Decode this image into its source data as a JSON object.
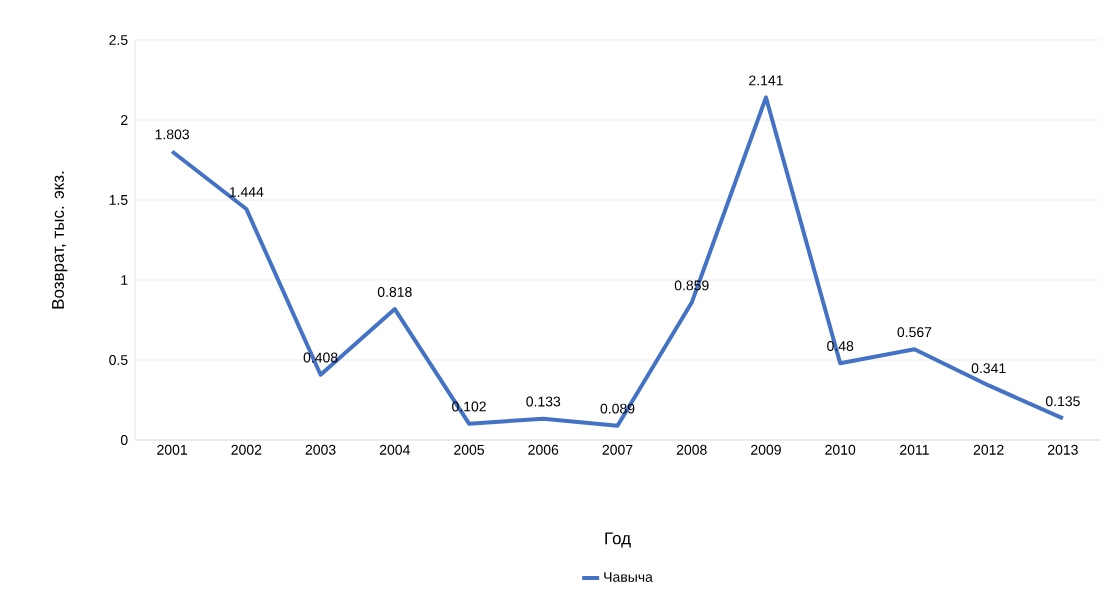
{
  "chart_data": {
    "type": "line",
    "xlabel": "Год",
    "ylabel": "Возврат, тыс. экз.",
    "categories": [
      "2001",
      "2002",
      "2003",
      "2004",
      "2005",
      "2006",
      "2007",
      "2008",
      "2009",
      "2010",
      "2011",
      "2012",
      "2013"
    ],
    "series": [
      {
        "name": "Чавыча",
        "color": "#4472c4",
        "values": [
          1.803,
          1.444,
          0.408,
          0.818,
          0.102,
          0.133,
          0.089,
          0.859,
          2.141,
          0.48,
          0.567,
          0.341,
          0.135
        ]
      }
    ],
    "ylim": [
      0,
      2.5
    ],
    "yticks": [
      0,
      0.5,
      1,
      1.5,
      2,
      2.5
    ],
    "grid": "y",
    "legend": "bottom",
    "marker": "none",
    "line_style": "solid",
    "data_labels": true
  }
}
